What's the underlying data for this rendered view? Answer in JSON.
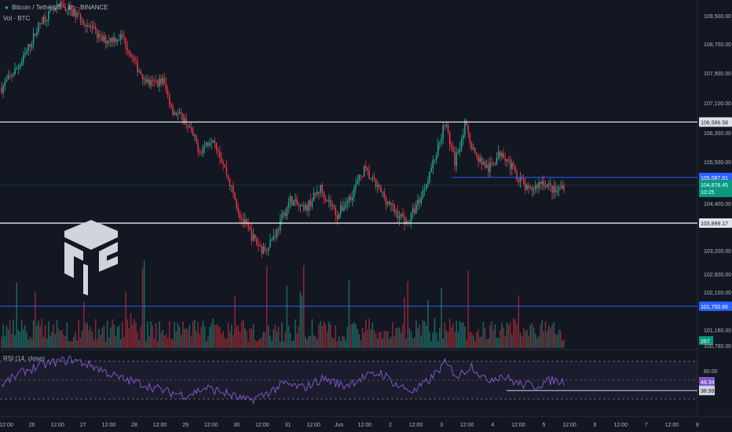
{
  "header": {
    "symbol": "Bitcoin / TetherUS · 1h · BINANCE",
    "volume_label": "Vol · BTC",
    "rsi_label": "RSI (14, close)"
  },
  "colors": {
    "background": "#131722",
    "up": "#22ab94",
    "down": "#f23645",
    "rsi_line": "#7e57c2",
    "blue_line": "#2962ff",
    "white_line": "#e0e3eb"
  },
  "chart_data": {
    "type": "candlestick",
    "title": "Bitcoin / TetherUS · 1h · BINANCE",
    "y_axis": {
      "ticks": [
        109500,
        108700,
        107900,
        107100,
        106300,
        105500,
        104400,
        103200,
        102600,
        102100,
        101160,
        100760
      ],
      "range": [
        100700,
        110000
      ]
    },
    "x_axis": {
      "ticks": [
        "12:00",
        "26",
        "12:00",
        "27",
        "12:00",
        "28",
        "12:00",
        "29",
        "12:00",
        "30",
        "12:00",
        "31",
        "12:00",
        "Jun",
        "12:00",
        "2",
        "12:00",
        "3",
        "12:00",
        "4",
        "12:00",
        "5",
        "12:00",
        "6",
        "12:00",
        "7",
        "12:00",
        "8"
      ]
    },
    "price_path": [
      [
        0,
        107500
      ],
      [
        12,
        108200
      ],
      [
        24,
        109400
      ],
      [
        36,
        109800
      ],
      [
        48,
        109400
      ],
      [
        60,
        108800
      ],
      [
        72,
        108900
      ],
      [
        80,
        108100
      ],
      [
        88,
        107600
      ],
      [
        96,
        107700
      ],
      [
        102,
        106900
      ],
      [
        110,
        106600
      ],
      [
        118,
        105800
      ],
      [
        126,
        106200
      ],
      [
        134,
        105200
      ],
      [
        142,
        104100
      ],
      [
        150,
        103500
      ],
      [
        156,
        103200
      ],
      [
        164,
        103700
      ],
      [
        172,
        104500
      ],
      [
        180,
        104200
      ],
      [
        190,
        104800
      ],
      [
        200,
        104100
      ],
      [
        208,
        104600
      ],
      [
        216,
        105300
      ],
      [
        226,
        104700
      ],
      [
        234,
        104200
      ],
      [
        242,
        103900
      ],
      [
        250,
        104600
      ],
      [
        258,
        105600
      ],
      [
        264,
        106600
      ],
      [
        270,
        105500
      ],
      [
        276,
        106500
      ],
      [
        282,
        105700
      ],
      [
        290,
        105300
      ],
      [
        298,
        105800
      ],
      [
        306,
        105200
      ],
      [
        314,
        104700
      ],
      [
        322,
        105000
      ],
      [
        330,
        104700
      ],
      [
        335,
        104878
      ]
    ],
    "horizontal_lines": [
      {
        "value": 106586.58,
        "label": "106,586.58",
        "color": "#e0e3eb"
      },
      {
        "value": 105087.81,
        "label": "105,087.81",
        "color": "#2962ff"
      },
      {
        "value": 103899.17,
        "label": "103,899.17",
        "color": "#e0e3eb"
      },
      {
        "value": 101750.66,
        "label": "101,750.66",
        "color": "#2962ff"
      }
    ],
    "last_price": {
      "value": 104878.45,
      "label": "104,878.45",
      "countdown": "10:25"
    },
    "volume": {
      "last_label": "267"
    },
    "rsi": {
      "period": 14,
      "source": "close",
      "upper": 70,
      "lower": 30,
      "ticks": [
        {
          "value": 60,
          "label": "60.00"
        },
        {
          "value": 48.34,
          "label": "48.34"
        },
        {
          "value": 38.99,
          "label": "38.99"
        }
      ],
      "path": [
        [
          0,
          45
        ],
        [
          14,
          60
        ],
        [
          28,
          68
        ],
        [
          42,
          72
        ],
        [
          56,
          64
        ],
        [
          70,
          52
        ],
        [
          84,
          46
        ],
        [
          98,
          38
        ],
        [
          110,
          34
        ],
        [
          122,
          42
        ],
        [
          134,
          36
        ],
        [
          146,
          28
        ],
        [
          156,
          34
        ],
        [
          168,
          46
        ],
        [
          180,
          42
        ],
        [
          192,
          52
        ],
        [
          204,
          44
        ],
        [
          214,
          52
        ],
        [
          226,
          58
        ],
        [
          236,
          44
        ],
        [
          246,
          38
        ],
        [
          256,
          52
        ],
        [
          264,
          68
        ],
        [
          272,
          54
        ],
        [
          280,
          66
        ],
        [
          288,
          50
        ],
        [
          298,
          55
        ],
        [
          308,
          46
        ],
        [
          318,
          44
        ],
        [
          328,
          50
        ],
        [
          335,
          48
        ]
      ]
    }
  }
}
